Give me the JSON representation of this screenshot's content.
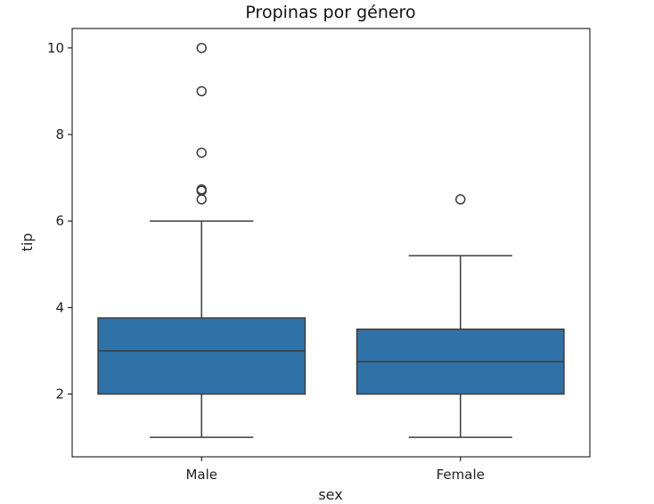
{
  "chart_data": {
    "type": "box",
    "title": "Propinas por género",
    "xlabel": "sex",
    "ylabel": "tip",
    "categories": [
      "Male",
      "Female"
    ],
    "ylim": [
      0.55,
      10.45
    ],
    "yticks": [
      2,
      4,
      6,
      8,
      10
    ],
    "grid": false,
    "box_color": "#2e72a8",
    "line_color": "#3d3d3d",
    "boxes": [
      {
        "category": "Male",
        "whisker_low": 1.0,
        "q1": 2.0,
        "median": 3.0,
        "q3": 3.76,
        "whisker_high": 6.0,
        "outliers": [
          6.5,
          6.7,
          6.73,
          7.58,
          9.0,
          10.0
        ]
      },
      {
        "category": "Female",
        "whisker_low": 1.0,
        "q1": 2.0,
        "median": 2.75,
        "q3": 3.5,
        "whisker_high": 5.2,
        "outliers": [
          6.5
        ]
      }
    ]
  }
}
